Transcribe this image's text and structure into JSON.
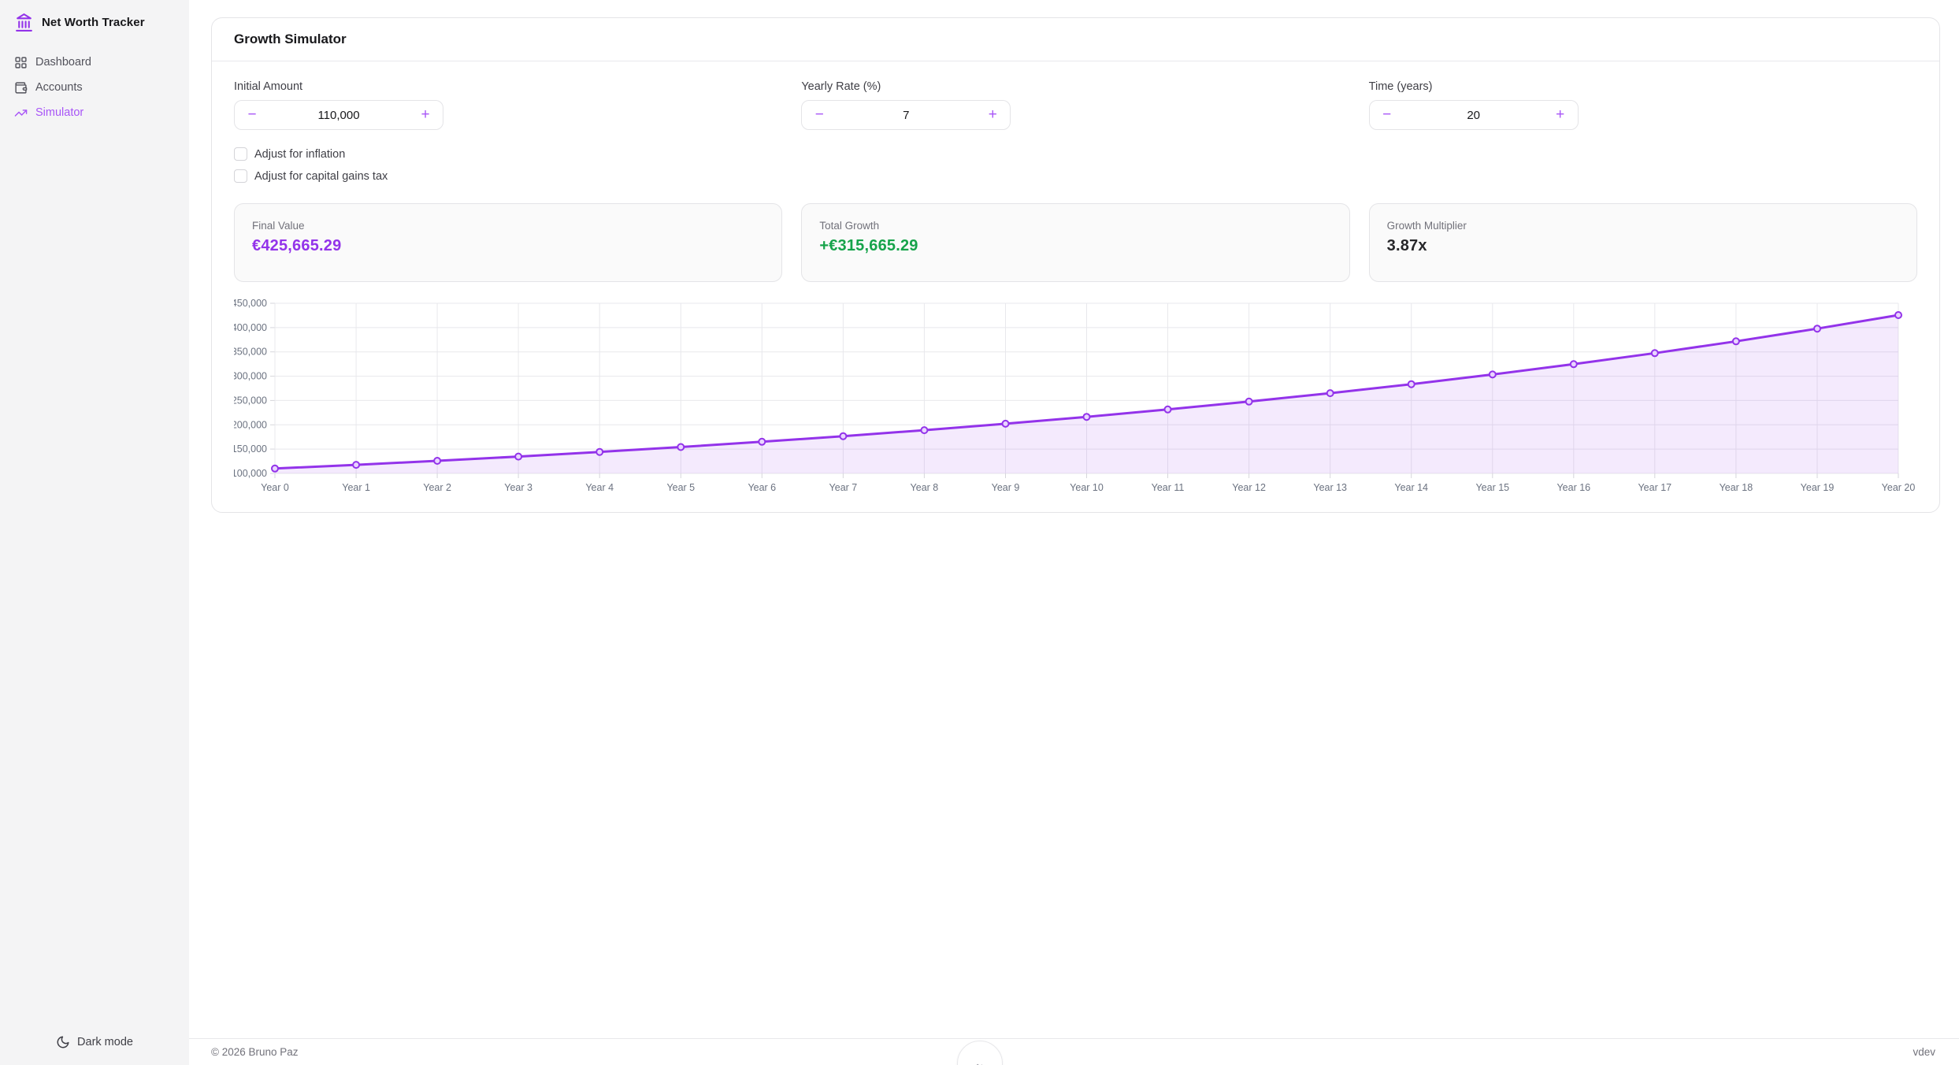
{
  "app": {
    "title": "Net Worth Tracker",
    "logo_icon": "landmark-icon"
  },
  "sidebar": {
    "items": [
      {
        "label": "Dashboard",
        "icon": "layout-grid-icon",
        "active": false
      },
      {
        "label": "Accounts",
        "icon": "wallet-icon",
        "active": false
      },
      {
        "label": "Simulator",
        "icon": "trending-up-icon",
        "active": true
      }
    ],
    "dark_mode_label": "Dark mode",
    "dark_mode_icon": "moon-icon"
  },
  "page": {
    "title": "Growth Simulator"
  },
  "controls": [
    {
      "label": "Initial Amount",
      "value": "110,000",
      "minus": "−",
      "plus": "+"
    },
    {
      "label": "Yearly Rate (%)",
      "value": "7",
      "minus": "−",
      "plus": "+"
    },
    {
      "label": "Time (years)",
      "value": "20",
      "minus": "−",
      "plus": "+"
    }
  ],
  "checkboxes": [
    {
      "label": "Adjust for inflation",
      "checked": false
    },
    {
      "label": "Adjust for capital gains tax",
      "checked": false
    }
  ],
  "stats": [
    {
      "label": "Final Value",
      "value": "€425,665.29",
      "color": "#9333ea"
    },
    {
      "label": "Total Growth",
      "value": "+€315,665.29",
      "color": "#16a34a"
    },
    {
      "label": "Growth Multiplier",
      "value": "3.87x",
      "color": "#27272a"
    }
  ],
  "chart_data": {
    "type": "line",
    "title": "",
    "xlabel": "",
    "ylabel": "",
    "x_labels": [
      "Year 0",
      "Year 1",
      "Year 2",
      "Year 3",
      "Year 4",
      "Year 5",
      "Year 6",
      "Year 7",
      "Year 8",
      "Year 9",
      "Year 10",
      "Year 11",
      "Year 12",
      "Year 13",
      "Year 14",
      "Year 15",
      "Year 16",
      "Year 17",
      "Year 18",
      "Year 19",
      "Year 20"
    ],
    "values": [
      110000,
      117700,
      125939,
      134754.73,
      144187.56,
      154280.69,
      165080.34,
      176635.96,
      189000.48,
      202230.51,
      216386.65,
      231533.71,
      247741.07,
      265082.95,
      283638.75,
      303493.47,
      324738.01,
      347469.67,
      371792.54,
      397818.02,
      425665.29
    ],
    "ylim": [
      100000,
      450000
    ],
    "ytick_step": 50000,
    "grid": true,
    "legend": false,
    "line_color": "#9333ea",
    "point_fill": "#e9d5ff",
    "area_fill": "rgba(147,51,234,0.10)",
    "grid_color": "#e8e8ec",
    "tick_color": "#6b7280"
  },
  "footer": {
    "copyright": "© 2026 Bruno Paz",
    "version": "vdev",
    "badge_icon": "mountains-icon"
  }
}
